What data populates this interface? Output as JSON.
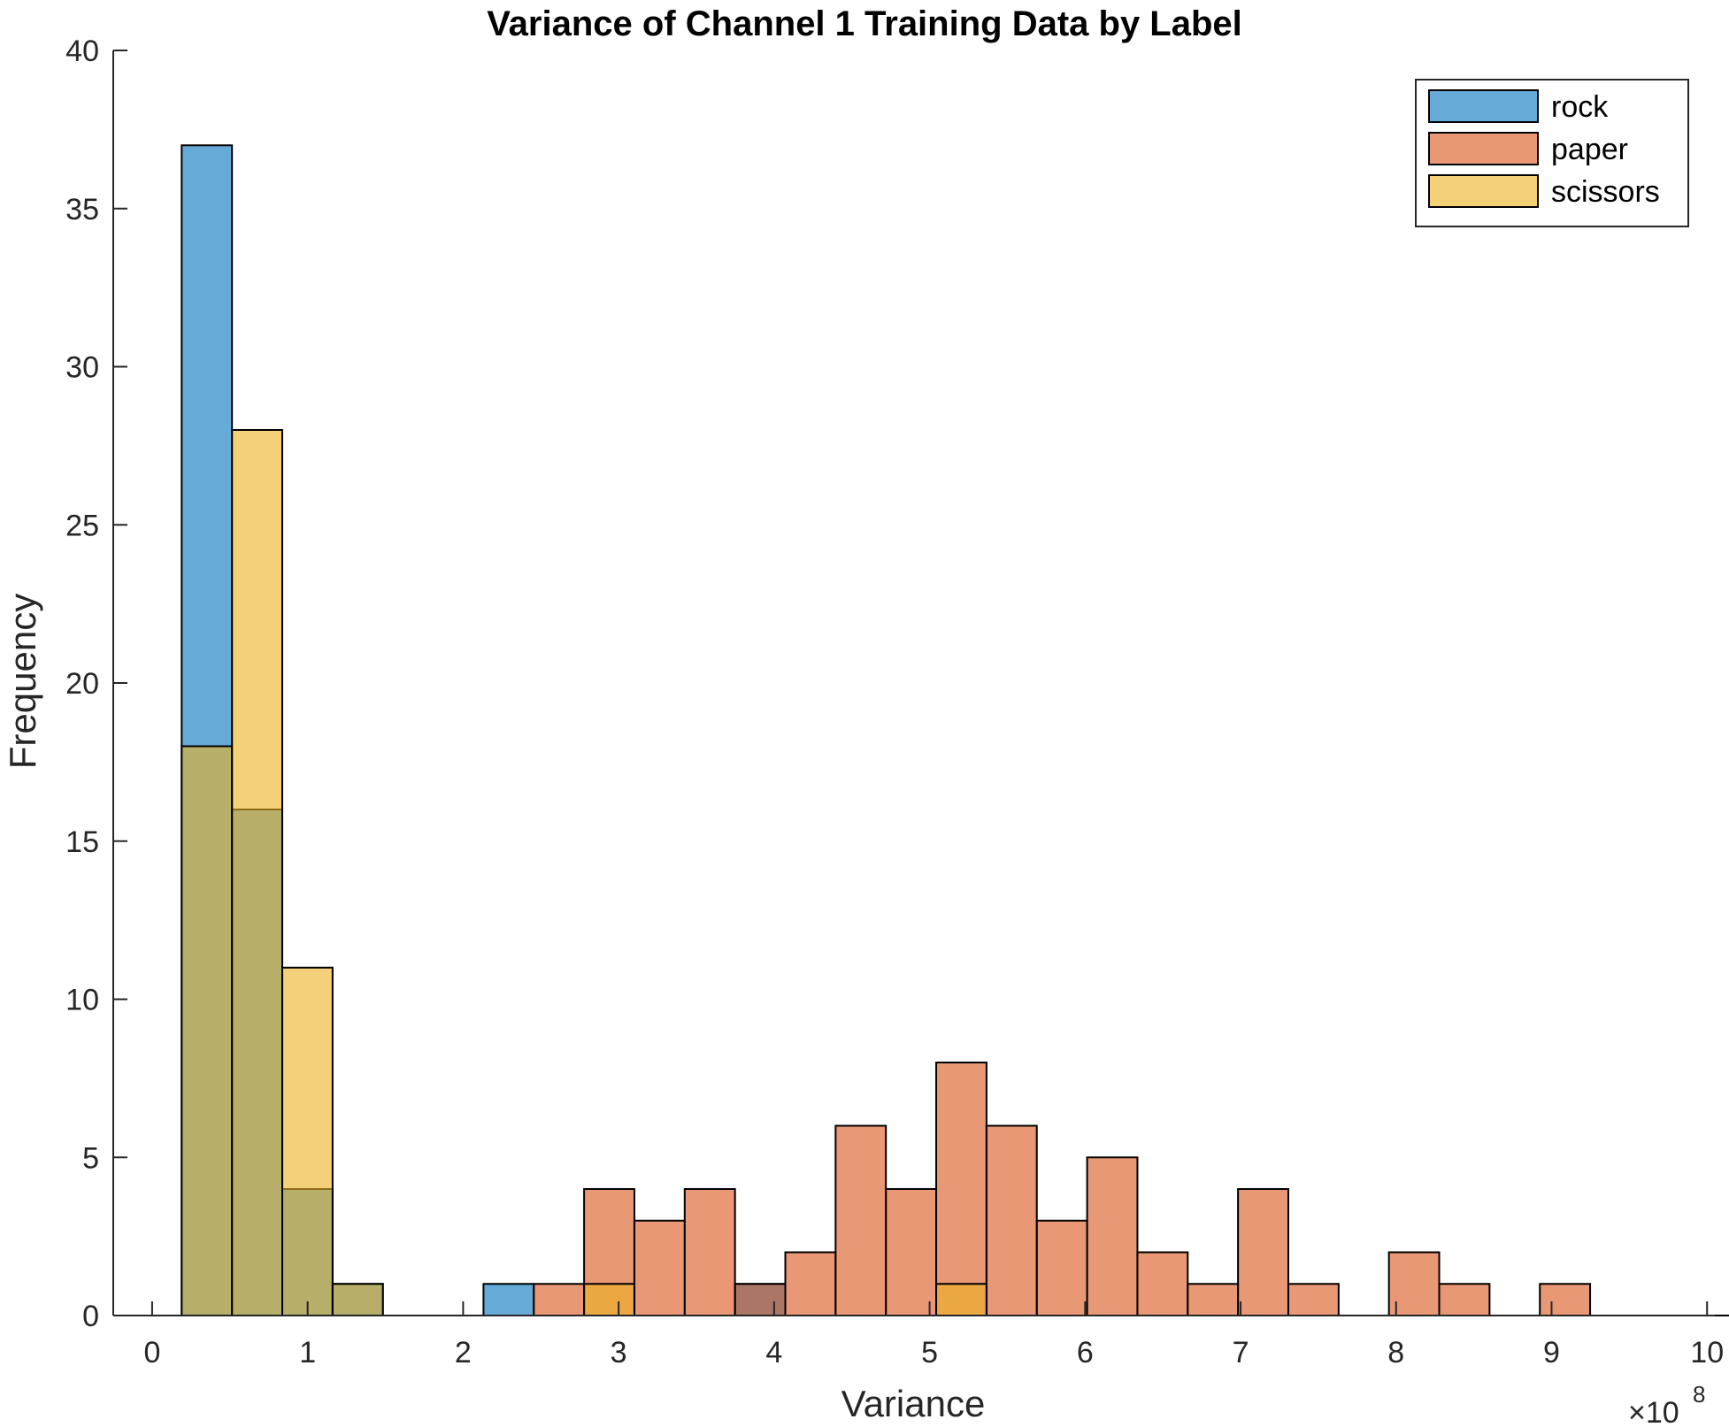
{
  "chart_data": {
    "type": "bar",
    "title": "Variance of Channel 1 Training Data by Label",
    "xlabel": "Variance",
    "ylabel": "Frequency",
    "x_exponent_label": "×10",
    "x_exponent_power": "8",
    "xlim": [
      -0.25,
      10.05
    ],
    "ylim": [
      0,
      40
    ],
    "xticks": [
      "0",
      "1",
      "2",
      "3",
      "4",
      "5",
      "6",
      "7",
      "8",
      "9",
      "10"
    ],
    "yticks": [
      "0",
      "5",
      "10",
      "15",
      "20",
      "25",
      "30",
      "35",
      "40"
    ],
    "bin_width": 0.3235,
    "bin_start": 0.19,
    "grid": false,
    "legend_position": "top-right",
    "face_alpha": 0.6,
    "series": [
      {
        "name": "rock",
        "color": "#0072BD",
        "values": [
          37,
          16,
          4,
          1,
          0,
          0,
          1,
          0,
          0,
          0,
          0,
          1,
          0,
          0,
          0,
          0,
          0,
          0,
          0,
          0,
          0,
          0,
          0,
          0,
          0,
          0,
          0,
          0,
          0,
          0,
          0
        ]
      },
      {
        "name": "paper",
        "color": "#D95319",
        "values": [
          0,
          0,
          0,
          0,
          0,
          0,
          0,
          1,
          4,
          3,
          4,
          1,
          2,
          6,
          4,
          8,
          6,
          3,
          5,
          2,
          1,
          4,
          1,
          0,
          2,
          1,
          0,
          1,
          0,
          0,
          0
        ]
      },
      {
        "name": "scissors",
        "color": "#EDB120",
        "values": [
          18,
          28,
          11,
          1,
          0,
          0,
          0,
          0,
          1,
          0,
          0,
          0,
          0,
          0,
          0,
          1,
          0,
          0,
          0,
          0,
          0,
          0,
          0,
          0,
          0,
          0,
          0,
          0,
          0,
          0,
          0
        ]
      }
    ]
  }
}
